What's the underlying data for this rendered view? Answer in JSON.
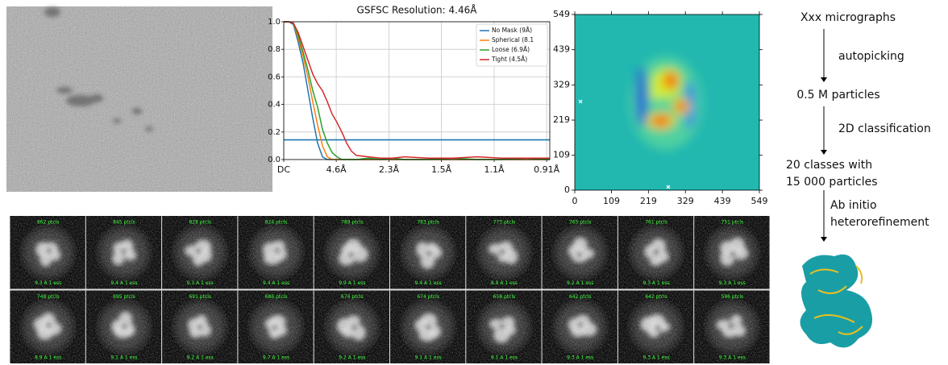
{
  "chart_data": [
    {
      "type": "line",
      "title": "GSFSC Resolution: 4.46Å",
      "x": [
        0,
        0.02,
        0.04,
        0.06,
        0.08,
        0.1,
        0.12,
        0.14,
        0.16,
        0.18,
        0.2,
        0.22,
        0.24,
        0.26,
        0.28,
        0.3,
        0.35,
        0.4,
        0.45,
        0.5,
        0.6,
        0.7,
        0.8,
        0.9,
        1.0,
        1.1
      ],
      "series": [
        {
          "name": "No Mask (9Å)",
          "color": "#1f77b4",
          "values": [
            1,
            1,
            0.98,
            0.85,
            0.7,
            0.5,
            0.3,
            0.12,
            0.02,
            0,
            0,
            0,
            0,
            0,
            0,
            0,
            0,
            0,
            0,
            0,
            0,
            0,
            0,
            0,
            0,
            0
          ]
        },
        {
          "name": "Spherical (8.1",
          "color": "#ff7f0e",
          "values": [
            1,
            1,
            0.99,
            0.88,
            0.75,
            0.6,
            0.42,
            0.25,
            0.1,
            0.02,
            0,
            0,
            0,
            0,
            0,
            0,
            0,
            0,
            0,
            0,
            0,
            0,
            0,
            0,
            0,
            0
          ]
        },
        {
          "name": "Loose (6.9Å)",
          "color": "#2ca02c",
          "values": [
            1,
            1,
            0.99,
            0.9,
            0.78,
            0.65,
            0.5,
            0.38,
            0.22,
            0.12,
            0.05,
            0.02,
            0,
            0,
            0,
            0,
            0.01,
            0,
            0.01,
            0,
            0,
            0.01,
            0,
            0,
            0.01,
            0
          ]
        },
        {
          "name": "Tight (4.5Å)",
          "color": "#d62728",
          "values": [
            1,
            1,
            0.99,
            0.92,
            0.82,
            0.72,
            0.62,
            0.55,
            0.5,
            0.42,
            0.33,
            0.27,
            0.2,
            0.12,
            0.06,
            0.03,
            0.02,
            0.01,
            0.01,
            0.02,
            0.01,
            0.01,
            0.02,
            0.01,
            0.01,
            0.01
          ]
        }
      ],
      "hline": 0.143,
      "hline_color": "#1f77b4",
      "xlim": [
        0,
        1.1
      ],
      "xticks": [
        {
          "value": 0,
          "label": "DC"
        },
        {
          "value": 0.217,
          "label": "4.6Å"
        },
        {
          "value": 0.435,
          "label": "2.3Å"
        },
        {
          "value": 0.652,
          "label": "1.5Å"
        },
        {
          "value": 0.87,
          "label": "1.1Å"
        },
        {
          "value": 1.087,
          "label": "0.91Å"
        }
      ],
      "ylim": [
        0,
        1
      ],
      "yticks": [
        {
          "value": 0,
          "label": "0.0"
        },
        {
          "value": 0.2,
          "label": "0.2"
        },
        {
          "value": 0.4,
          "label": "0.4"
        },
        {
          "value": 0.6,
          "label": "0.6"
        },
        {
          "value": 0.8,
          "label": "0.8"
        },
        {
          "value": 1,
          "label": "1.0"
        }
      ],
      "grid": true,
      "legend": "upper right"
    },
    {
      "type": "heatmap",
      "xlim": [
        0,
        549
      ],
      "ylim": [
        0,
        549
      ],
      "xticks": [
        0,
        109,
        219,
        329,
        439,
        549
      ],
      "yticks": [
        0,
        109,
        219,
        329,
        439,
        549
      ],
      "points": {
        "x": [
          17,
          278
        ],
        "y": [
          277,
          10
        ],
        "color": "#ffffff"
      }
    }
  ],
  "class_averages": [
    {
      "particles": "862 ptcls",
      "resolution": "9.3 A 1 ess"
    },
    {
      "particles": "845 ptcls",
      "resolution": "9.4 A 1 ess"
    },
    {
      "particles": "828 ptcls",
      "resolution": "9.3 A 1 ess"
    },
    {
      "particles": "824 ptcls",
      "resolution": "9.4 A 1 ess"
    },
    {
      "particles": "789 ptcls",
      "resolution": "9.9 A 1 ess"
    },
    {
      "particles": "783 ptcls",
      "resolution": "9.4 A 1 ess"
    },
    {
      "particles": "773 ptcls",
      "resolution": "8.9 A 1 ess"
    },
    {
      "particles": "765 ptcls",
      "resolution": "9.2 A 1 ess"
    },
    {
      "particles": "761 ptcls",
      "resolution": "9.3 A 1 ess"
    },
    {
      "particles": "751 ptcls",
      "resolution": "9.3 A 1 ess"
    },
    {
      "particles": "748 ptcls",
      "resolution": "8.9 A 1 ess"
    },
    {
      "particles": "695 ptcls",
      "resolution": "9.1 A 1 ess"
    },
    {
      "particles": "691 ptcls",
      "resolution": "9.2 A 1 ess"
    },
    {
      "particles": "686 ptcls",
      "resolution": "9.7 A 1 ess"
    },
    {
      "particles": "674 ptcls",
      "resolution": "9.2 A 1 ess"
    },
    {
      "particles": "674 ptcls",
      "resolution": "9.1 A 1 ess"
    },
    {
      "particles": "658 ptcls",
      "resolution": "9.1 A 1 ess"
    },
    {
      "particles": "642 ptcls",
      "resolution": "9.3 A 1 ess"
    },
    {
      "particles": "642 ptcls",
      "resolution": "9.3 A 1 ess"
    },
    {
      "particles": "596 ptcls",
      "resolution": "9.3 A 1 ess"
    }
  ],
  "workflow": {
    "steps": [
      [
        "Xxx micrographs"
      ],
      [
        "0.5 M particles"
      ],
      [
        "20 classes with",
        "15 000 particles"
      ]
    ],
    "actions": [
      [
        "autopicking"
      ],
      [
        "2D classification"
      ],
      [
        "Ab initio",
        "heterorefinement"
      ]
    ]
  }
}
